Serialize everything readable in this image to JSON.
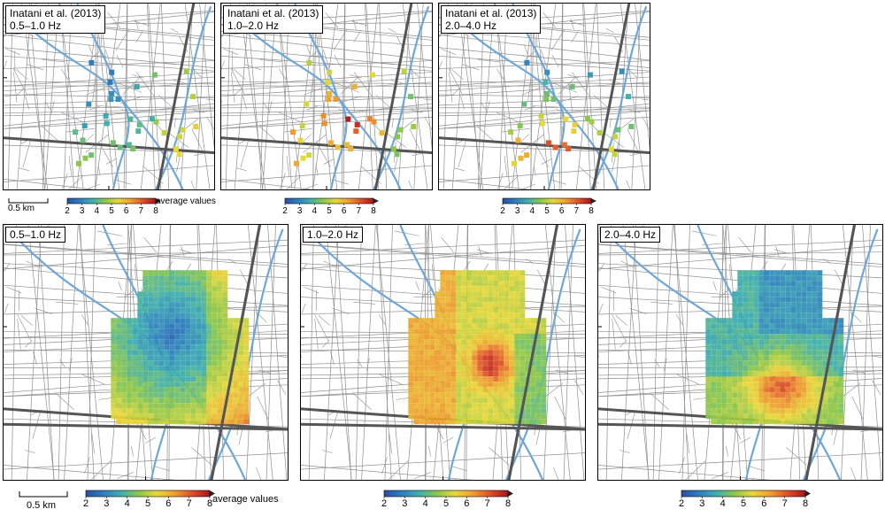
{
  "top_panels": [
    {
      "title": "Inatani et al. (2013)",
      "band": "0.5–1.0 Hz",
      "mode": "low"
    },
    {
      "title": "Inatani et al. (2013)",
      "band": "1.0–2.0 Hz",
      "mode": "high"
    },
    {
      "title": "Inatani et al. (2013)",
      "band": "2.0–4.0 Hz",
      "mode": "mid"
    }
  ],
  "bottom_panels": [
    {
      "band": "0.5–1.0 Hz",
      "mode": "low"
    },
    {
      "band": "1.0–2.0 Hz",
      "mode": "high"
    },
    {
      "band": "2.0–4.0 Hz",
      "mode": "mid"
    }
  ],
  "colorbar": {
    "ticks": [
      "2",
      "3",
      "4",
      "5",
      "6",
      "7",
      "8"
    ],
    "label": "average values",
    "colors": [
      "#2a4fa0",
      "#2f7fc0",
      "#3fb0b0",
      "#8cc84a",
      "#e8d83a",
      "#f0a030",
      "#e0502a",
      "#a8161c"
    ]
  },
  "scalebar_label": "0.5 km",
  "colors": {
    "road_minor": "#8f8f8f",
    "road_major": "#555555",
    "river": "#6fa6d8"
  }
}
